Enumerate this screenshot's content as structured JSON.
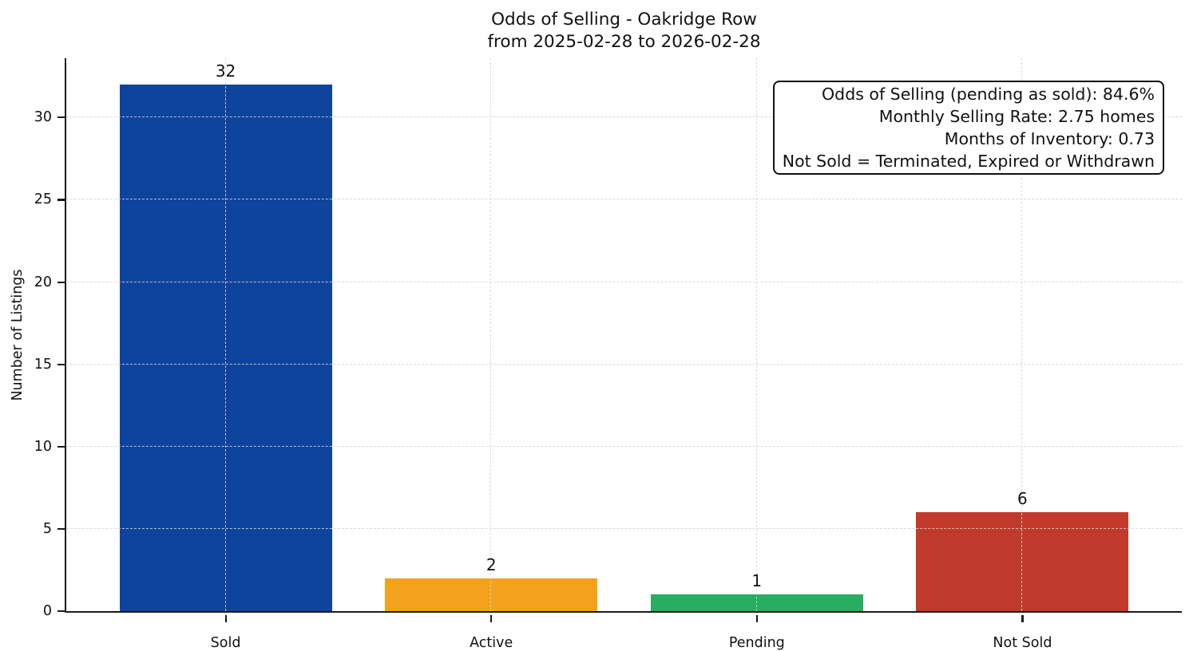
{
  "chart_data": {
    "type": "bar",
    "title": "Odds of Selling - Oakridge Row",
    "subtitle": "from 2025-02-28 to 2026-02-28",
    "categories": [
      "Sold",
      "Active",
      "Pending",
      "Not Sold"
    ],
    "values": [
      32,
      2,
      1,
      6
    ],
    "bar_colors": [
      "#0f449c",
      "#f4a21d",
      "#27ae60",
      "#c23a2b"
    ],
    "xlabel": "",
    "ylabel": "Number of Listings",
    "ylim": [
      0,
      33.6
    ],
    "yticks": [
      0,
      5,
      10,
      15,
      20,
      25,
      30
    ],
    "grid": "dashed, light gray, horizontal at yticks and vertical at bar centers",
    "legend": "none",
    "annotation": {
      "lines": [
        "Odds of Selling (pending as sold): 84.6%",
        "Monthly Selling Rate: 2.75 homes",
        "Months of Inventory: 0.73",
        "Not Sold = Terminated, Expired or Withdrawn"
      ]
    }
  }
}
